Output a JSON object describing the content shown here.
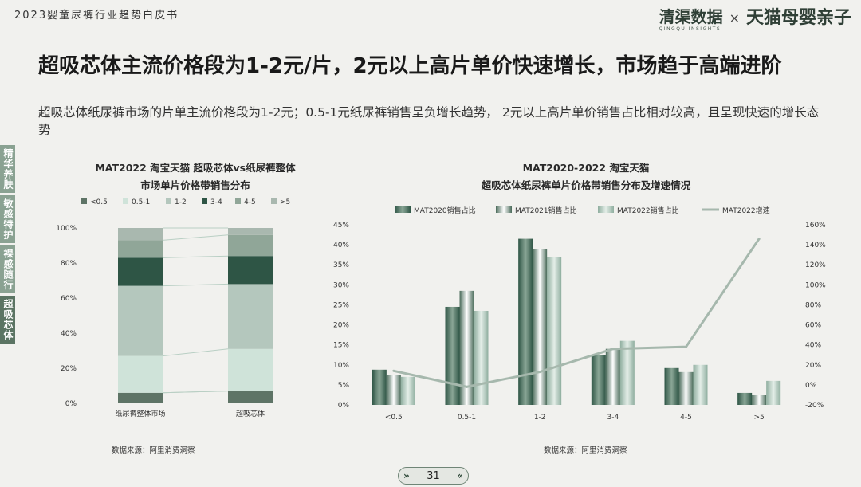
{
  "header": {
    "doc_title": "2023婴童尿裤行业趋势白皮书",
    "brand_qingqu": "清渠数据",
    "brand_qingqu_sub": "QINGQU INSIGHTS",
    "brand_times": "×",
    "brand_tmall": "天猫母婴亲子"
  },
  "headline": "超吸芯体主流价格段为1-2元/片，2元以上高片单价快速增长，市场趋于高端进阶",
  "intro": "超吸芯体纸尿裤市场的片单主流价格段为1-2元；0.5-1元纸尿裤销售呈负增长趋势， 2元以上高片单价销售占比相对较高，且呈现快速的增长态势",
  "side_tabs": [
    "精华养肤",
    "敏感特护",
    "裸感随行",
    "超吸芯体"
  ],
  "charts": {
    "left_title_1": "MAT2022 淘宝天猫 超吸芯体vs纸尿裤整体",
    "left_title_2": "市场单片价格带销售分布",
    "right_title_1": "MAT2020-2022 淘宝天猫",
    "right_title_2": "超吸芯体纸尿裤单片价格带销售分布及增速情况",
    "left_source": "数据来源：阿里消费洞察",
    "right_source": "数据来源：阿里消费洞察"
  },
  "colors": {
    "lt05": "#5e7466",
    "b05_1": "#cfe3d9",
    "b1_2": "#b4c7bd",
    "b3_4": "#2e5545",
    "b4_5": "#90a698",
    "gt5": "#a9b8af",
    "growth_line": "#a6b8ad"
  },
  "chart_data": [
    {
      "type": "bar",
      "stacked": true,
      "title": "MAT2022 淘宝天猫 超吸芯体vs纸尿裤整体 市场单片价格带销售分布",
      "categories": [
        "纸尿裤整体市场",
        "超吸芯体"
      ],
      "series": [
        {
          "name": "<0.5",
          "values": [
            6,
            7
          ]
        },
        {
          "name": "0.5-1",
          "values": [
            21,
            24
          ]
        },
        {
          "name": "1-2",
          "values": [
            40,
            37
          ]
        },
        {
          "name": "3-4",
          "values": [
            16,
            16
          ]
        },
        {
          "name": "4-5",
          "values": [
            10,
            12
          ]
        },
        {
          "name": ">5",
          "values": [
            7,
            4
          ]
        }
      ],
      "yticks": [
        "0%",
        "20%",
        "40%",
        "60%",
        "80%",
        "100%"
      ],
      "ylim": [
        0,
        100
      ],
      "legend_position": "top"
    },
    {
      "type": "bar",
      "title": "MAT2020-2022 淘宝天猫 超吸芯体纸尿裤单片价格带销售分布及增速情况",
      "categories": [
        "<0.5",
        "0.5-1",
        "1-2",
        "3-4",
        "4-5",
        ">5"
      ],
      "series": [
        {
          "name": "MAT2020销售占比",
          "values": [
            8.8,
            24.5,
            41.5,
            12.5,
            9.2,
            3.0
          ]
        },
        {
          "name": "MAT2021销售占比",
          "values": [
            7.5,
            28.5,
            39.0,
            14.0,
            8.2,
            2.5
          ]
        },
        {
          "name": "MAT2022销售占比",
          "values": [
            7.0,
            23.5,
            37.0,
            16.0,
            10.0,
            6.0
          ]
        },
        {
          "name": "MAT2022增速",
          "type": "line",
          "axis": "right",
          "values": [
            14,
            -2,
            13,
            36,
            38,
            146
          ]
        }
      ],
      "yticks_left": [
        "0%",
        "5%",
        "10%",
        "15%",
        "20%",
        "25%",
        "30%",
        "35%",
        "40%",
        "45%"
      ],
      "ylim_left": [
        0,
        45
      ],
      "yticks_right": [
        "-20%",
        "0%",
        "20%",
        "40%",
        "60%",
        "80%",
        "100%",
        "120%",
        "140%",
        "160%"
      ],
      "ylim_right": [
        -20,
        160
      ],
      "legend_position": "top"
    }
  ],
  "pager": {
    "prev": "»",
    "page": "31",
    "next": "«"
  }
}
